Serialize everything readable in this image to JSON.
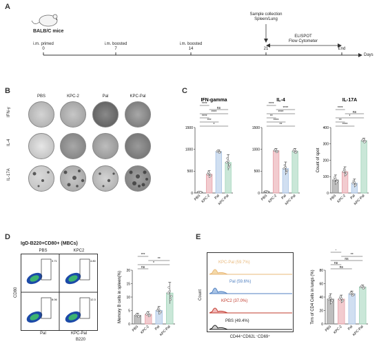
{
  "panel_a": {
    "letter": "A",
    "mouse_label": "BALB/C mice",
    "timeline_events": [
      {
        "label": "i.m. primed",
        "day": "0"
      },
      {
        "label": "i.m. boosted",
        "day": "7"
      },
      {
        "label": "i.m. boosted",
        "day": "14"
      },
      {
        "label": "Sample collection\nSpleen/Lung",
        "day": "21"
      },
      {
        "label": "End",
        "day": ""
      }
    ],
    "assay_label": "ELISPOT\nFlow Cytometer",
    "axis_unit": "Days"
  },
  "panel_b": {
    "letter": "B",
    "columns": [
      "PBS",
      "KPC-2",
      "Pal",
      "KPC-Pal"
    ],
    "rows": [
      "IFN-γ",
      "IL-4",
      "IL-17A"
    ]
  },
  "panel_c": {
    "letter": "C",
    "ylabel_right": "Count of spot"
  },
  "panel_d": {
    "letter": "D",
    "title": "IgD-B220+CD80+ (MBCs)",
    "flow_labels": [
      "PBS",
      "KPC2",
      "Pal",
      "KPC-Pal"
    ],
    "flow_values": [
      "3.71",
      "4.80",
      "8.06",
      "12.3"
    ],
    "x_axis": "B220",
    "y_axis": "CD80"
  },
  "panel_e": {
    "letter": "E",
    "histogram_labels": [
      {
        "text": "KPC-Pal (59.7%)",
        "color": "#e8b87a"
      },
      {
        "text": "Pal (59.6%)",
        "color": "#4f7fc0"
      },
      {
        "text": "KPC2 (37.0%)",
        "color": "#c0392b"
      },
      {
        "text": "PBS (49.4%)",
        "color": "#222222"
      }
    ],
    "y_axis": "Count",
    "x_axis": "CD44⁺CD62L⁻CD69⁺"
  },
  "chart_data": [
    {
      "type": "bar",
      "title": "IFN-gamma",
      "categories": [
        "PBS",
        "KPC-2",
        "Pal",
        "KPC-Pal"
      ],
      "values": [
        20,
        430,
        950,
        700
      ],
      "errors": [
        10,
        80,
        40,
        180
      ],
      "ylim": [
        0,
        1500
      ],
      "yticks": [
        "0",
        "500",
        "1000",
        "1500"
      ],
      "significance": [
        "****",
        "ns",
        "****",
        "****",
        "***",
        "*"
      ],
      "colors": [
        "#888888",
        "#e8a0a8",
        "#a9c4e6",
        "#9fd4b8"
      ]
    },
    {
      "type": "bar",
      "title": "IL-4",
      "categories": [
        "PBS",
        "KPC-2",
        "Pal",
        "KPC-Pal"
      ],
      "values": [
        30,
        970,
        560,
        960
      ],
      "errors": [
        15,
        50,
        150,
        60
      ],
      "ylim": [
        0,
        1500
      ],
      "yticks": [
        "0",
        "500",
        "1000",
        "1500"
      ],
      "significance": [
        "****",
        "****",
        "****",
        "**",
        "****",
        "**"
      ],
      "colors": [
        "#888888",
        "#e8a0a8",
        "#a9c4e6",
        "#9fd4b8"
      ]
    },
    {
      "type": "bar",
      "title": "IL-17A",
      "ylabel": "Count of spot",
      "categories": [
        "PBS",
        "KPC-2",
        "Pal",
        "KPC-Pal"
      ],
      "values": [
        80,
        130,
        60,
        320
      ],
      "errors": [
        30,
        30,
        25,
        15
      ],
      "ylim": [
        0,
        400
      ],
      "yticks": [
        "0",
        "100",
        "200",
        "300",
        "400"
      ],
      "significance": [
        "****",
        "ns",
        "*",
        "**",
        "****"
      ],
      "colors": [
        "#888888",
        "#e8a0a8",
        "#a9c4e6",
        "#9fd4b8"
      ]
    },
    {
      "type": "bar",
      "ylabel": "Memory B cells in spleen(%)",
      "categories": [
        "PBS",
        "KPC-2",
        "Pal",
        "KPC-Pal"
      ],
      "values": [
        3.2,
        3.6,
        5.0,
        11.5
      ],
      "errors": [
        0.8,
        1.0,
        1.5,
        4.0
      ],
      "ylim": [
        0,
        20
      ],
      "yticks": [
        "0",
        "5",
        "10",
        "15",
        "20"
      ],
      "significance": [
        "***",
        "**",
        "*",
        "ns"
      ],
      "colors": [
        "#888888",
        "#e8a0a8",
        "#a9c4e6",
        "#9fd4b8"
      ]
    },
    {
      "type": "bar",
      "ylabel": "Trm of CD4 Cells in lungs",
      "ylabel_unit": "%",
      "categories": [
        "PBS",
        "KPC-2",
        "Pal",
        "KPC-Pal"
      ],
      "values": [
        37,
        37,
        45,
        55
      ],
      "errors": [
        8,
        6,
        4,
        3
      ],
      "ylim": [
        0,
        80
      ],
      "yticks": [
        "0",
        "20",
        "40",
        "60",
        "80"
      ],
      "significance": [
        "*",
        "**",
        "ns",
        "ns",
        "ns"
      ],
      "colors": [
        "#888888",
        "#e8a0a8",
        "#a9c4e6",
        "#9fd4b8"
      ]
    }
  ]
}
